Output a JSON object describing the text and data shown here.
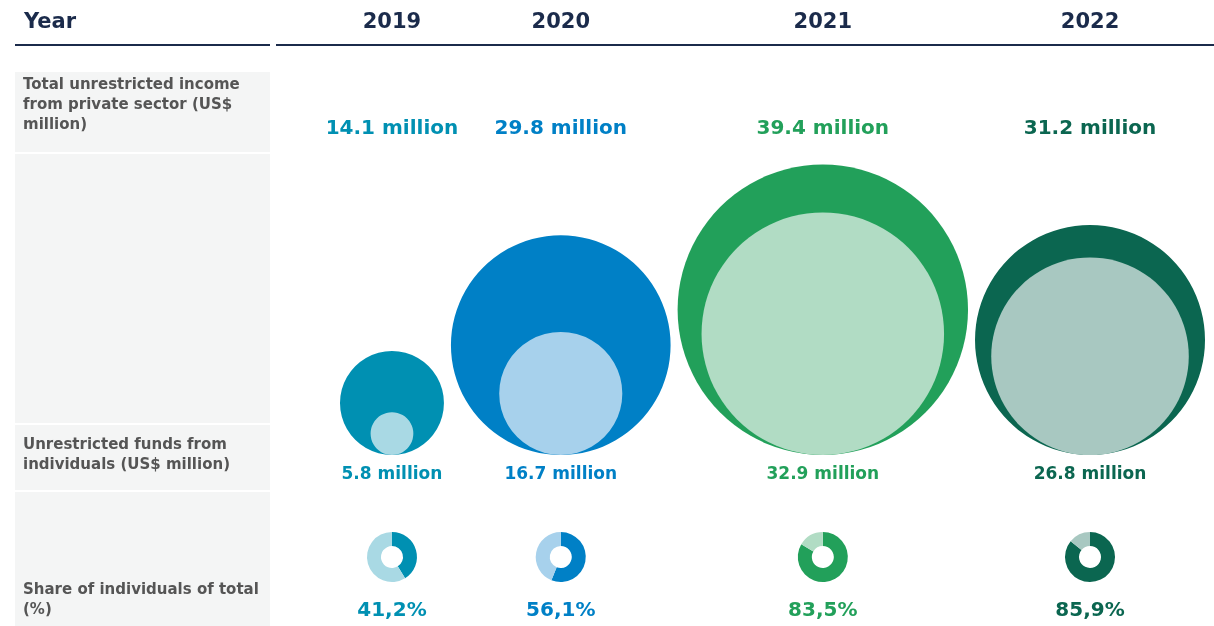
{
  "chart_data": {
    "type": "other",
    "xlabel": "Year",
    "categories": [
      "2019",
      "2020",
      "2021",
      "2022"
    ],
    "series": [
      {
        "name": "Total unrestricted income from private sector (US$ million)",
        "type": "bubble",
        "values": [
          14.1,
          29.8,
          39.4,
          31.2
        ],
        "colors": [
          "#0090b2",
          "#0080c6",
          "#22a05a",
          "#0b6650"
        ],
        "value_labels": [
          "14.1 million",
          "29.8 million",
          "39.4 million",
          "31.2 million"
        ]
      },
      {
        "name": "Unrestricted funds from individuals (US$ million)",
        "type": "bubble",
        "values": [
          5.8,
          16.7,
          32.9,
          26.8
        ],
        "colors": [
          "#a9d9e4",
          "#a7d1ec",
          "#b1dcc4",
          "#a8c8c1"
        ],
        "value_labels": [
          "5.8 million",
          "16.7 million",
          "32.9 million",
          "26.8 million"
        ]
      },
      {
        "name": "Share of individuals of total (%)",
        "type": "donut",
        "values": [
          41.2,
          56.1,
          83.5,
          85.9
        ],
        "colors": [
          "#0090b2",
          "#0080c6",
          "#22a05a",
          "#0b6650"
        ],
        "value_labels": [
          "41,2%",
          "56,1%",
          "83,5%",
          "85,9%"
        ]
      }
    ]
  }
}
